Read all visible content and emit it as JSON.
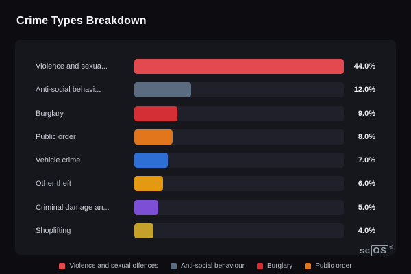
{
  "page": {
    "title": "Crime Types Breakdown"
  },
  "chart_data": {
    "type": "bar",
    "orientation": "horizontal",
    "title": "Crime Types Breakdown",
    "categories": [
      "Violence and sexua...",
      "Anti-social behavi...",
      "Burglary",
      "Public order",
      "Vehicle crime",
      "Other theft",
      "Criminal damage an...",
      "Shoplifting"
    ],
    "values": [
      44.0,
      12.0,
      9.0,
      8.0,
      7.0,
      6.0,
      5.0,
      4.0
    ],
    "value_labels": [
      "44.0%",
      "12.0%",
      "9.0%",
      "8.0%",
      "7.0%",
      "6.0%",
      "5.0%",
      "4.0%"
    ],
    "colors": [
      "#e24a50",
      "#5b6b80",
      "#d32f35",
      "#e2761d",
      "#2e6fd6",
      "#e39a12",
      "#7d4fd4",
      "#c5a12c"
    ],
    "xlim": [
      0,
      44
    ],
    "xlabel": "",
    "ylabel": "",
    "grid": false,
    "legend_position": "bottom"
  },
  "legend": {
    "items": [
      {
        "label": "Violence and sexual offences",
        "color": "#e24a50"
      },
      {
        "label": "Anti-social behaviour",
        "color": "#5b6b80"
      },
      {
        "label": "Burglary",
        "color": "#d32f35"
      },
      {
        "label": "Public order",
        "color": "#e2761d"
      }
    ]
  },
  "logo": {
    "prefix": "sc",
    "suffix": "OS",
    "registered": "®"
  }
}
